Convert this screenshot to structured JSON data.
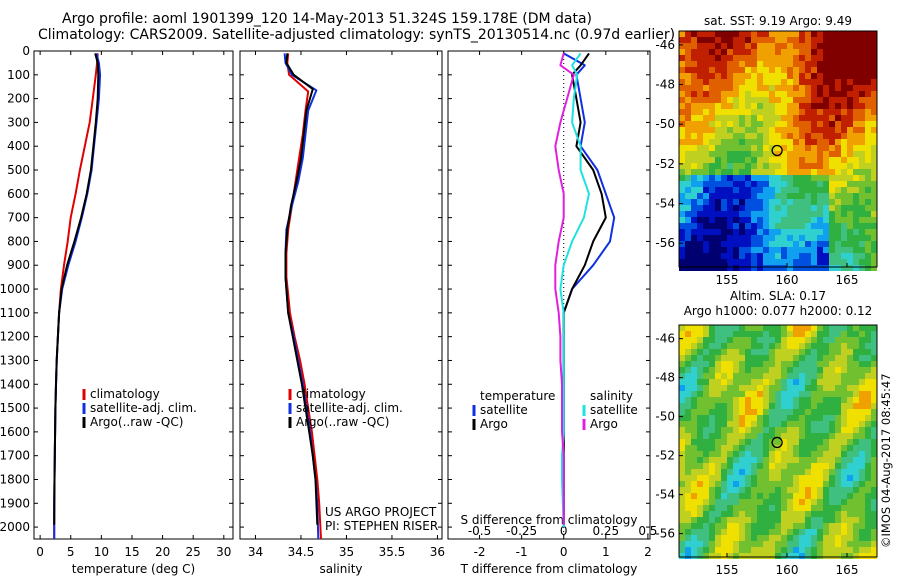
{
  "header": {
    "line1": "Argo profile: aoml 1901399_120 14-May-2013 51.324S 159.178E (DM data)",
    "line2": "Climatology: CARS2009. Satellite-adjusted climatology: synTS_20130514.nc (0.97d earlier)"
  },
  "colors": {
    "climatology": "#e00000",
    "satellite": "#1030e0",
    "argo": "#000000",
    "satellite_salinity": "#20e0e0",
    "argo_salinity": "#e020e0"
  },
  "credit": {
    "project": "US ARGO PROJECT",
    "pi": "PI: STEPHEN RISER"
  },
  "timestamp": "©IMOS 04-Aug-2017 08:45:47",
  "chart_data": [
    {
      "type": "line",
      "id": "temperature",
      "xlabel": "temperature (deg C)",
      "ylabel": "",
      "xlim": [
        -1,
        31.5
      ],
      "ylim": [
        2050,
        0
      ],
      "xticks": [
        0,
        5,
        10,
        15,
        20,
        25,
        30
      ],
      "yticks": [
        0,
        100,
        200,
        300,
        400,
        500,
        600,
        700,
        800,
        900,
        1000,
        1100,
        1200,
        1300,
        1400,
        1500,
        1600,
        1700,
        1800,
        1900,
        2000
      ],
      "legend": {
        "placement": "lower-center",
        "entries": [
          "climatology",
          "satellite-adj. clim.",
          "Argo(..raw -QC)"
        ]
      },
      "series": [
        {
          "name": "climatology",
          "color": "#e00000",
          "x": [
            9.4,
            9.3,
            9.1,
            8.6,
            8.1,
            7.3,
            6.5,
            5.8,
            5.0,
            4.5,
            3.9,
            3.4,
            3.1,
            2.9,
            2.7,
            2.6,
            2.5,
            2.45,
            2.4,
            2.35,
            2.3,
            2.3
          ],
          "y": [
            10,
            50,
            100,
            200,
            300,
            400,
            500,
            600,
            700,
            800,
            900,
            1000,
            1100,
            1200,
            1300,
            1400,
            1500,
            1600,
            1700,
            1800,
            1900,
            2050
          ]
        },
        {
          "name": "satellite-adj. clim.",
          "color": "#1030e0",
          "x": [
            9.2,
            9.6,
            9.8,
            9.6,
            9.2,
            8.8,
            8.4,
            7.7,
            6.8,
            5.8,
            4.6,
            3.6,
            3.1,
            2.9,
            2.7,
            2.6,
            2.5,
            2.45,
            2.4,
            2.35,
            2.3,
            2.3
          ],
          "y": [
            10,
            50,
            100,
            200,
            300,
            400,
            500,
            600,
            700,
            800,
            900,
            1000,
            1100,
            1200,
            1300,
            1400,
            1500,
            1600,
            1700,
            1800,
            1900,
            2050
          ]
        },
        {
          "name": "Argo(..raw -QC)",
          "color": "#000000",
          "x": [
            9.0,
            9.4,
            9.5,
            9.4,
            9.1,
            8.7,
            8.3,
            7.6,
            6.7,
            5.6,
            4.4,
            3.5,
            3.1,
            2.9,
            2.7,
            2.6,
            2.5,
            2.45,
            2.4,
            2.35,
            2.3
          ],
          "y": [
            10,
            50,
            100,
            200,
            300,
            400,
            500,
            600,
            700,
            800,
            900,
            1000,
            1100,
            1200,
            1300,
            1400,
            1500,
            1600,
            1700,
            1800,
            1990
          ]
        }
      ]
    },
    {
      "type": "line",
      "id": "salinity",
      "xlabel": "salinity",
      "ylabel": "",
      "xlim": [
        33.83,
        36.05
      ],
      "ylim": [
        2050,
        0
      ],
      "xticks": [
        34,
        34.5,
        35,
        35.5,
        36
      ],
      "legend": {
        "placement": "lower-center",
        "entries": [
          "climatology",
          "satellite-adj. clim.",
          "Argo(..raw -QC)"
        ]
      },
      "series": [
        {
          "name": "climatology",
          "color": "#e00000",
          "x": [
            34.36,
            34.35,
            34.37,
            34.58,
            34.55,
            34.52,
            34.48,
            34.44,
            34.4,
            34.36,
            34.34,
            34.34,
            34.38,
            34.43,
            34.49,
            34.54,
            34.58,
            34.62,
            34.65,
            34.68,
            34.7,
            34.72
          ],
          "y": [
            10,
            50,
            100,
            170,
            250,
            350,
            450,
            550,
            650,
            750,
            850,
            950,
            1100,
            1200,
            1300,
            1400,
            1500,
            1600,
            1700,
            1800,
            1900,
            2050
          ]
        },
        {
          "name": "satellite-adj. clim.",
          "color": "#1030e0",
          "x": [
            34.32,
            34.33,
            34.4,
            34.67,
            34.58,
            34.55,
            34.52,
            34.47,
            34.4,
            34.34,
            34.33,
            34.33,
            34.36,
            34.42,
            34.47,
            34.52,
            34.56,
            34.6,
            34.63,
            34.66,
            34.68,
            34.69
          ],
          "y": [
            10,
            50,
            100,
            165,
            250,
            350,
            450,
            550,
            650,
            750,
            850,
            950,
            1100,
            1200,
            1300,
            1400,
            1500,
            1600,
            1700,
            1800,
            1900,
            2050
          ]
        },
        {
          "name": "Argo(..raw -QC)",
          "color": "#000000",
          "x": [
            34.35,
            34.34,
            34.42,
            34.63,
            34.56,
            34.53,
            34.5,
            34.45,
            34.39,
            34.35,
            34.33,
            34.33,
            34.36,
            34.41,
            34.46,
            34.51,
            34.55,
            34.59,
            34.63,
            34.66,
            34.68
          ],
          "y": [
            10,
            50,
            100,
            160,
            250,
            350,
            450,
            550,
            650,
            750,
            850,
            950,
            1100,
            1200,
            1300,
            1400,
            1500,
            1600,
            1700,
            1800,
            1990
          ]
        }
      ]
    },
    {
      "type": "line",
      "id": "difference",
      "xlabel": "T difference from climatology",
      "secondary_label": "S difference from climatology",
      "ylabel": "",
      "xlim": [
        -2.75,
        2.05
      ],
      "ylim": [
        2050,
        0
      ],
      "xticks": [
        -2,
        -1,
        0,
        1,
        2
      ],
      "s_ticks": [
        -0.5,
        -0.25,
        0,
        0.25,
        0.5
      ],
      "legend": {
        "placement": "lower-center",
        "groups": [
          {
            "title": "temperature",
            "entries": [
              "satellite",
              "Argo"
            ]
          },
          {
            "title": "salinity",
            "entries": [
              "satellite",
              "Argo"
            ]
          }
        ]
      },
      "series": [
        {
          "name": "temperature satellite",
          "color": "#1030e0",
          "x": [
            0.0,
            0.5,
            0.3,
            0.4,
            0.5,
            0.4,
            0.8,
            1.0,
            1.2,
            1.1,
            0.7,
            0.2,
            0.0,
            0.0,
            0.0,
            0.0,
            0.0,
            0.0,
            0.0,
            0.0,
            0.0
          ],
          "y": [
            10,
            60,
            100,
            200,
            300,
            400,
            500,
            600,
            700,
            800,
            900,
            1000,
            1100,
            1200,
            1300,
            1400,
            1500,
            1600,
            1700,
            1800,
            2000
          ]
        },
        {
          "name": "temperature Argo",
          "color": "#000000",
          "x": [
            0.6,
            0.4,
            0.2,
            0.3,
            0.4,
            0.3,
            0.7,
            0.9,
            1.0,
            0.7,
            0.5,
            0.2,
            0.0,
            0.0,
            0.0,
            0.0,
            0.0,
            0.0,
            0.0,
            0.0,
            0.0
          ],
          "y": [
            10,
            60,
            100,
            200,
            300,
            400,
            500,
            600,
            700,
            800,
            900,
            1000,
            1100,
            1200,
            1300,
            1400,
            1500,
            1600,
            1700,
            1800,
            1990
          ]
        },
        {
          "name": "salinity satellite",
          "color": "#20e0e0",
          "x": [
            0.1,
            0.05,
            0.08,
            0.06,
            0.05,
            0.1,
            0.1,
            0.15,
            0.12,
            0.05,
            0.0,
            -0.02,
            0.0,
            0.0,
            0.0,
            0.0,
            0.0,
            0.0,
            -0.01,
            -0.01,
            0.0
          ],
          "y": [
            10,
            60,
            100,
            200,
            300,
            400,
            500,
            600,
            700,
            800,
            900,
            1000,
            1100,
            1200,
            1300,
            1400,
            1500,
            1600,
            1700,
            1800,
            2000
          ]
        },
        {
          "name": "salinity Argo",
          "color": "#e020e0",
          "x": [
            0.0,
            -0.02,
            0.06,
            0.02,
            -0.02,
            -0.05,
            -0.03,
            0.0,
            0.0,
            -0.03,
            -0.05,
            -0.05,
            -0.03,
            -0.02,
            -0.02,
            -0.01,
            -0.01,
            -0.01,
            0.0,
            0.0,
            0.0
          ],
          "y": [
            10,
            60,
            100,
            200,
            300,
            400,
            500,
            600,
            700,
            800,
            900,
            1000,
            1100,
            1200,
            1300,
            1400,
            1500,
            1600,
            1700,
            1800,
            1990
          ]
        }
      ]
    },
    {
      "type": "heatmap",
      "id": "sst_map",
      "title": "sat. SST: 9.19 Argo: 9.49",
      "xticks": [
        155,
        160,
        165
      ],
      "yticks": [
        -46,
        -48,
        -50,
        -52,
        -54,
        -56
      ],
      "xlim": [
        151,
        167.5
      ],
      "ylim": [
        -57.2,
        -45.3
      ],
      "marker": {
        "lon": 159.178,
        "lat": -51.324
      }
    },
    {
      "type": "heatmap",
      "id": "sla_map",
      "title": "Altim. SLA: 0.17",
      "subtitle": "Argo h1000: 0.077 h2000: 0.12",
      "xticks": [
        155,
        160,
        165
      ],
      "yticks": [
        -46,
        -48,
        -50,
        -52,
        -54,
        -56
      ],
      "xlim": [
        151,
        167.5
      ],
      "ylim": [
        -57.2,
        -45.3
      ],
      "marker": {
        "lon": 159.178,
        "lat": -51.324
      }
    }
  ]
}
